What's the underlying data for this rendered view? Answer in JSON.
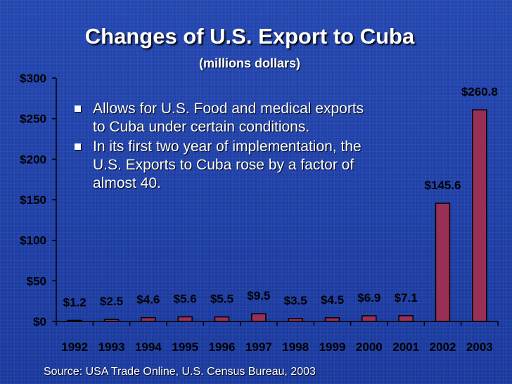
{
  "slide": {
    "source": "Source: USA Trade Online, U.S. Census Bureau, 2003",
    "bullets": [
      "Allows for U.S. Food and medical exports to Cuba under certain conditions.",
      "In its first two year of implementation, the U.S. Exports to Cuba rose by a factor of almost 40."
    ]
  },
  "colors": {
    "bar_fill": "#9a2f55",
    "bar_stroke": "#000000",
    "axis": "#000000",
    "text": "#ffffff"
  },
  "chart_data": {
    "type": "bar",
    "title": "Changes of U.S. Export to Cuba",
    "subtitle": "(millions dollars)",
    "categories": [
      "1992",
      "1993",
      "1994",
      "1995",
      "1996",
      "1997",
      "1998",
      "1999",
      "2000",
      "2001",
      "2002",
      "2003"
    ],
    "values": [
      1.2,
      2.5,
      4.6,
      5.6,
      5.5,
      9.5,
      3.5,
      4.5,
      6.9,
      7.1,
      145.6,
      260.8
    ],
    "data_labels": [
      "$1.2",
      "$2.5",
      "$4.6",
      "$5.6",
      "$5.5",
      "$9.5",
      "$3.5",
      "$4.5",
      "$6.9",
      "$7.1",
      "$145.6",
      "$260.8"
    ],
    "y_ticks": [
      0,
      50,
      100,
      150,
      200,
      250,
      300
    ],
    "y_tick_labels": [
      "$0",
      "$50",
      "$100",
      "$150",
      "$200",
      "$250",
      "$300"
    ],
    "ylim": [
      0,
      300
    ],
    "xlabel": "",
    "ylabel": "",
    "grid": false,
    "legend": "none"
  }
}
